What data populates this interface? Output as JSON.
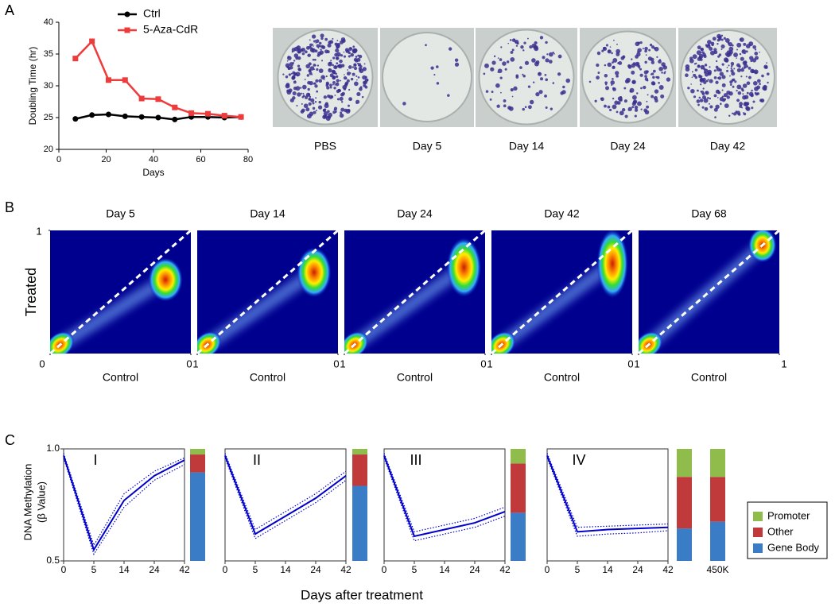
{
  "panel_labels": [
    "A",
    "B",
    "C"
  ],
  "plates": [
    "PBS",
    "Day 5",
    "Day 14",
    "Day 24",
    "Day 42"
  ],
  "chart_data": [
    {
      "type": "line",
      "x_label": "Days",
      "y_label": "Doubling Time (hr)",
      "x": [
        7,
        14,
        21,
        28,
        35,
        42,
        49,
        56,
        63,
        70,
        77
      ],
      "series": [
        {
          "name": "Ctrl",
          "color": "#000000",
          "values": [
            24.8,
            25.4,
            25.5,
            25.2,
            25.1,
            25.0,
            24.7,
            25.1,
            25.1,
            25.0,
            25.1
          ]
        },
        {
          "name": "5-Aza-CdR",
          "color": "#ee3b3b",
          "values": [
            34.3,
            37.0,
            30.9,
            30.9,
            28.0,
            27.9,
            26.6,
            25.7,
            25.6,
            25.3,
            25.1
          ]
        }
      ],
      "xlim": [
        0,
        80
      ],
      "xticks": [
        0,
        20,
        40,
        60,
        80
      ],
      "ylim": [
        20,
        40
      ],
      "yticks": [
        20,
        25,
        30,
        35,
        40
      ]
    },
    {
      "type": "density",
      "title": "Day 5",
      "x_label": "Control",
      "y_label": "Treated",
      "xlim": [
        0,
        1
      ],
      "xticks": [
        0,
        1
      ],
      "ylim": [
        0,
        1
      ],
      "yticks": [
        1
      ]
    },
    {
      "type": "density",
      "title": "Day 14",
      "x_label": "Control",
      "xlim": [
        0,
        1
      ],
      "xticks": [
        0,
        1
      ],
      "ylim": [
        0,
        1
      ]
    },
    {
      "type": "density",
      "title": "Day 24",
      "x_label": "Control",
      "xlim": [
        0,
        1
      ],
      "xticks": [
        0,
        1
      ],
      "ylim": [
        0,
        1
      ]
    },
    {
      "type": "density",
      "title": "Day 42",
      "x_label": "Control",
      "xlim": [
        0,
        1
      ],
      "xticks": [
        0,
        1
      ],
      "ylim": [
        0,
        1
      ]
    },
    {
      "type": "density",
      "title": "Day 68",
      "x_label": "Control",
      "xlim": [
        0,
        1
      ],
      "xticks": [
        0,
        1
      ],
      "ylim": [
        0,
        1
      ]
    },
    {
      "type": "band_line",
      "label": "I",
      "color": "#0000cc",
      "categories": [
        "0",
        "5",
        "14",
        "24",
        "42"
      ],
      "values": [
        0.97,
        0.55,
        0.77,
        0.88,
        0.95
      ],
      "upper": [
        0.98,
        0.57,
        0.8,
        0.9,
        0.96
      ],
      "lower": [
        0.96,
        0.53,
        0.74,
        0.86,
        0.93
      ],
      "ylim": [
        0.5,
        1.0
      ],
      "yticks": [
        {
          "value": 1.0,
          "label": "1.0"
        },
        {
          "value": 0.5,
          "label": "0.5"
        }
      ]
    },
    {
      "type": "band_line",
      "label": "II",
      "color": "#0000cc",
      "categories": [
        "0",
        "5",
        "14",
        "24",
        "42"
      ],
      "values": [
        0.97,
        0.62,
        0.7,
        0.78,
        0.88
      ],
      "upper": [
        0.98,
        0.64,
        0.72,
        0.8,
        0.9
      ],
      "lower": [
        0.96,
        0.6,
        0.68,
        0.76,
        0.86
      ],
      "ylim": [
        0.5,
        1.0
      ]
    },
    {
      "type": "band_line",
      "label": "III",
      "color": "#0000cc",
      "categories": [
        "0",
        "5",
        "14",
        "24",
        "42"
      ],
      "values": [
        0.97,
        0.61,
        0.64,
        0.67,
        0.72
      ],
      "upper": [
        0.98,
        0.63,
        0.66,
        0.69,
        0.74
      ],
      "lower": [
        0.96,
        0.59,
        0.62,
        0.65,
        0.7
      ],
      "ylim": [
        0.5,
        1.0
      ]
    },
    {
      "type": "band_line",
      "label": "IV",
      "color": "#0000cc",
      "categories": [
        "0",
        "5",
        "14",
        "24",
        "42"
      ],
      "values": [
        0.97,
        0.63,
        0.64,
        0.645,
        0.65
      ],
      "upper": [
        0.98,
        0.65,
        0.655,
        0.66,
        0.665
      ],
      "lower": [
        0.96,
        0.61,
        0.62,
        0.625,
        0.635
      ],
      "ylim": [
        0.5,
        1.0
      ]
    },
    {
      "type": "stacked_bar",
      "categories": [
        null,
        null,
        null,
        null,
        "450K"
      ],
      "ylim": [
        0,
        100
      ],
      "series": [
        {
          "name": "Promoter",
          "color": "#8fbc4a",
          "values": [
            5,
            5,
            13,
            25,
            25
          ]
        },
        {
          "name": "Other",
          "color": "#c0393b",
          "values": [
            16,
            28,
            44,
            46,
            40
          ]
        },
        {
          "name": "Gene Body",
          "color": "#3b7cc7",
          "values": [
            79,
            67,
            43,
            29,
            35
          ]
        }
      ]
    }
  ],
  "figure_c": {
    "x_label": "Days after treatment",
    "y_label": [
      "DNA Methylation",
      "(β Value)"
    ]
  }
}
